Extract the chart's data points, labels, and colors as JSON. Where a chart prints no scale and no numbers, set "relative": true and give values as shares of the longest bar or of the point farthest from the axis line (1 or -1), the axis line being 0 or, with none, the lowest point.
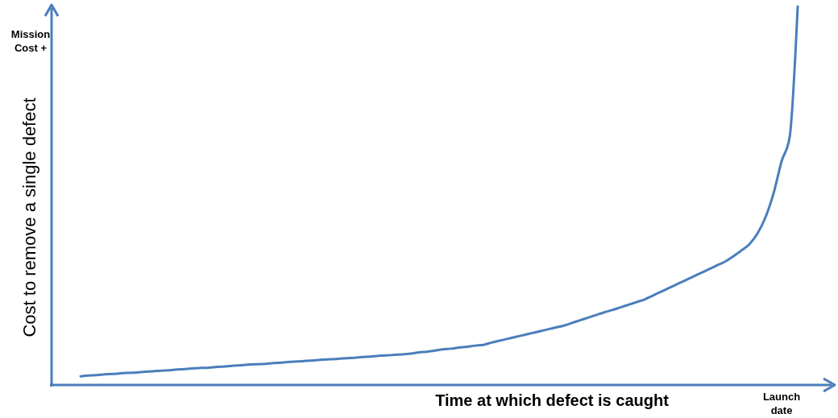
{
  "chart_data": {
    "type": "line",
    "relative": true,
    "xlabel": "Time at which defect is caught",
    "ylabel": "Cost to remove a single defect",
    "annotations": [
      "Mission Cost +",
      "Launch date"
    ],
    "categories": [
      null,
      null,
      null,
      null,
      null,
      null,
      null,
      null,
      null,
      null,
      null,
      null,
      null,
      null,
      null,
      null,
      null,
      null,
      null,
      null,
      null,
      null,
      null,
      null,
      null,
      null,
      null,
      null,
      null,
      null,
      null,
      null,
      null,
      null,
      null,
      null,
      null,
      null,
      null,
      null,
      null,
      null,
      null,
      null,
      null,
      null,
      null,
      null,
      null,
      null,
      null,
      null,
      null,
      null,
      null,
      null,
      null,
      null,
      null,
      null,
      null,
      null,
      null,
      null,
      null,
      null,
      null,
      null,
      null,
      null,
      null,
      null,
      null,
      null,
      null,
      null,
      null,
      null,
      null,
      null,
      null,
      null,
      null,
      null,
      null,
      null,
      null,
      null,
      null,
      null
    ],
    "series": [
      {
        "color": "#4a7ebb",
        "values": [
          0.023,
          0.025,
          0.026,
          0.028,
          0.029,
          0.031,
          0.032,
          0.033,
          0.035,
          0.036,
          0.038,
          0.039,
          0.041,
          0.042,
          0.044,
          0.045,
          0.046,
          0.048,
          0.049,
          0.051,
          0.052,
          0.054,
          0.055,
          0.056,
          0.058,
          0.059,
          0.061,
          0.062,
          0.064,
          0.065,
          0.067,
          0.068,
          0.069,
          0.071,
          0.072,
          0.074,
          0.075,
          0.077,
          0.078,
          0.08,
          0.081,
          0.083,
          0.086,
          0.088,
          0.091,
          0.094,
          0.096,
          0.099,
          0.101,
          0.104,
          0.106,
          0.112,
          0.117,
          0.122,
          0.127,
          0.132,
          0.137,
          0.142,
          0.147,
          0.152,
          0.157,
          0.164,
          0.171,
          0.178,
          0.185,
          0.192,
          0.198,
          0.205,
          0.212,
          0.219,
          0.226,
          0.236,
          0.246,
          0.256,
          0.266,
          0.276,
          0.286,
          0.296,
          0.306,
          0.316,
          0.326,
          0.34,
          0.355,
          0.372,
          0.4,
          0.443,
          0.506,
          0.591,
          0.655,
          1.0
        ]
      }
    ],
    "marker": "none",
    "line_style": "solid"
  }
}
